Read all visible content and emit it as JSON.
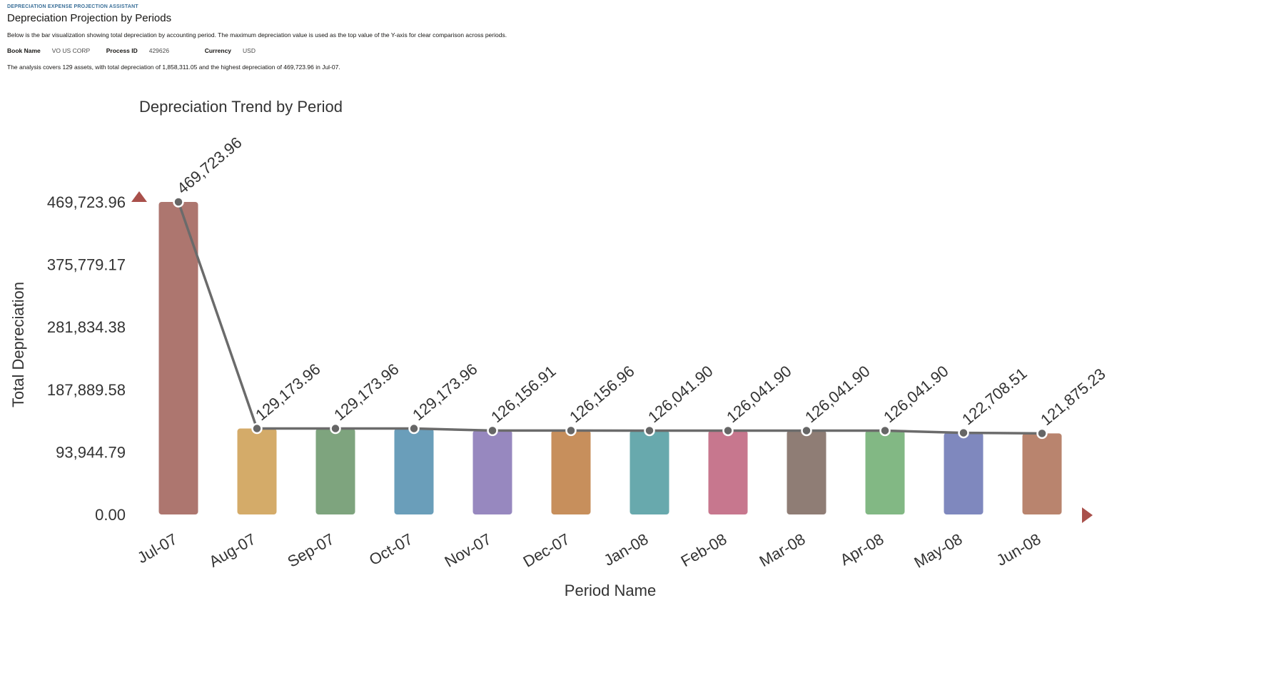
{
  "header": {
    "eyebrow": "DEPRECIATION EXPENSE PROJECTION ASSISTANT",
    "title": "Depreciation Projection by Periods",
    "description": "Below is the bar visualization showing total depreciation by accounting period. The maximum depreciation value is used as the top value of the Y-axis for clear comparison across periods.",
    "meta": [
      {
        "key": "Book Name",
        "value": "VO US CORP"
      },
      {
        "key": "Process ID",
        "value": "429626"
      },
      {
        "key": "Currency",
        "value": "USD"
      }
    ],
    "summary": "The analysis covers 129 assets, with total depreciation of 1,858,311.05 and the highest depreciation of 469,723.96 in Jul-07."
  },
  "controls": {
    "scroll_up_icon": "triangle-up-icon",
    "scroll_right_icon": "triangle-right-icon",
    "accent_color": "#a9504b"
  },
  "chart_data": {
    "type": "bar",
    "title": "Depreciation Trend by Period",
    "xlabel": "Period Name",
    "ylabel": "Total Depreciation",
    "categories": [
      "Jul-07",
      "Aug-07",
      "Sep-07",
      "Oct-07",
      "Nov-07",
      "Dec-07",
      "Jan-08",
      "Feb-08",
      "Mar-08",
      "Apr-08",
      "May-08",
      "Jun-08"
    ],
    "values": [
      469723.96,
      129173.96,
      129173.96,
      129173.96,
      126156.91,
      126156.96,
      126041.9,
      126041.9,
      126041.9,
      126041.9,
      122708.51,
      121875.23
    ],
    "data_labels": [
      "469,723.96",
      "129,173.96",
      "129,173.96",
      "129,173.96",
      "126,156.91",
      "126,156.96",
      "126,041.90",
      "126,041.90",
      "126,041.90",
      "126,041.90",
      "122,708.51",
      "121,875.23"
    ],
    "yticks": [
      "0.00",
      "93,944.79",
      "187,889.58",
      "281,834.38",
      "375,779.17",
      "469,723.96"
    ],
    "ylim": [
      0,
      469723.96
    ],
    "colors": [
      "#ad766f",
      "#d4ab69",
      "#7ea47e",
      "#6a9eba",
      "#9788bf",
      "#c78f5c",
      "#68a9ad",
      "#c7778e",
      "#8f7d75",
      "#82b884",
      "#7f88be",
      "#b9846e"
    ],
    "line_color": "#6b6b6b",
    "grid": false,
    "legend": "none"
  }
}
